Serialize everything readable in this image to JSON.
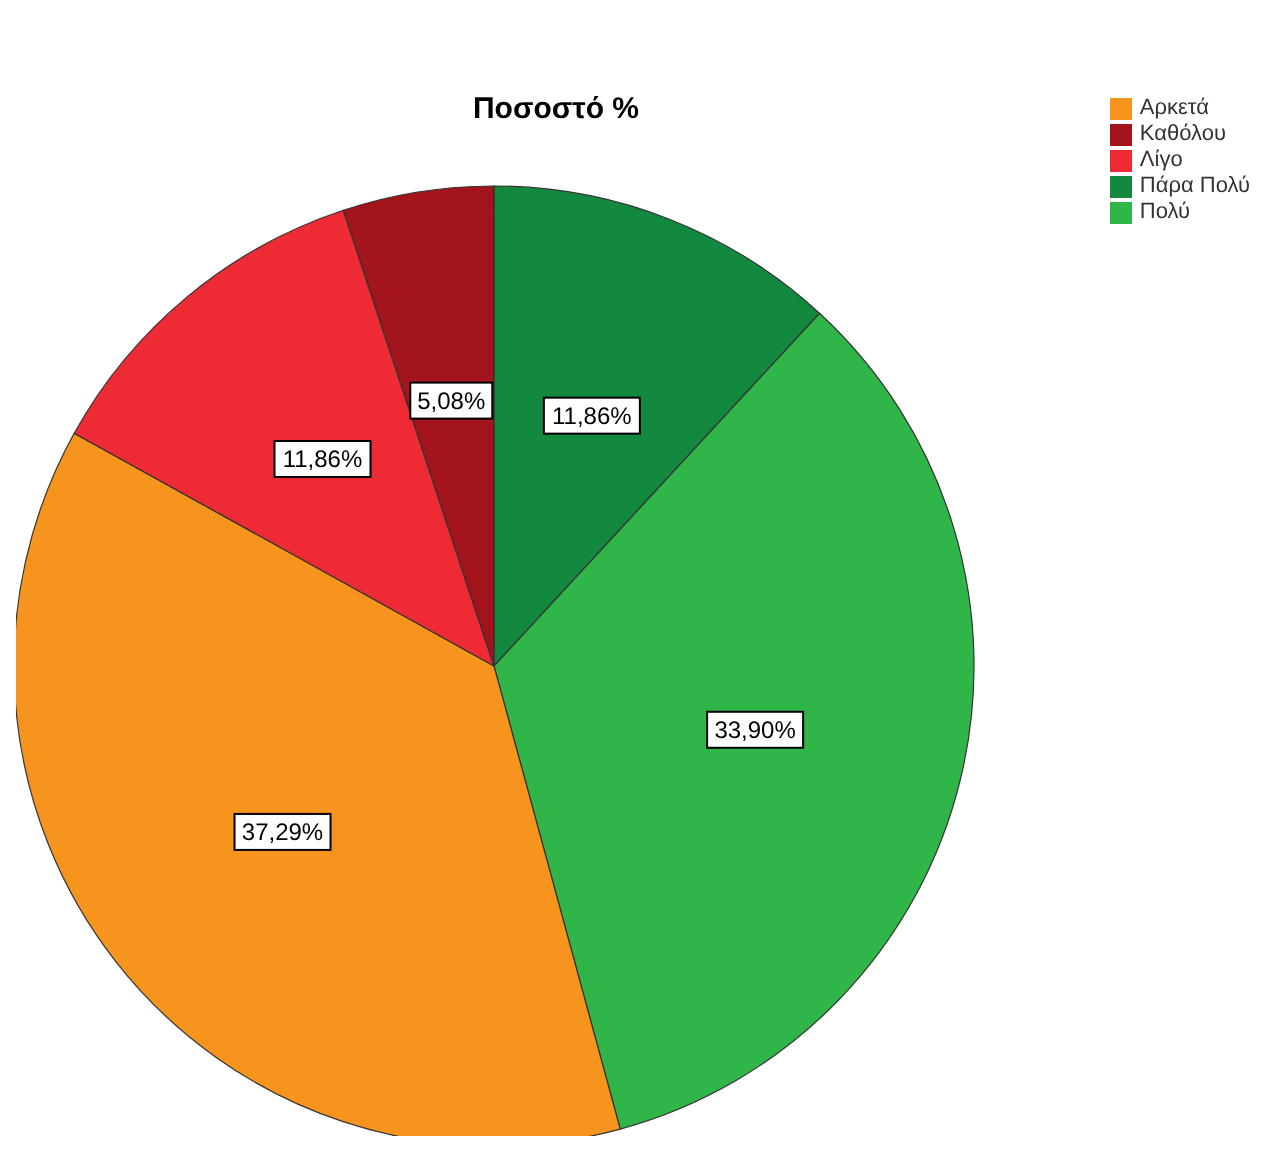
{
  "chart_data": {
    "type": "pie",
    "title": "Ποσοστό %",
    "categories": [
      "Πάρα Πολύ",
      "Πολύ",
      "Αρκετά",
      "Λίγο",
      "Καθόλου"
    ],
    "values": [
      11.86,
      33.9,
      37.29,
      11.86,
      5.08
    ],
    "colors": [
      "#13893f",
      "#2fb548",
      "#f7941d",
      "#ee2b34",
      "#a3141c"
    ],
    "value_labels": [
      "11,86%",
      "33,90%",
      "37,29%",
      "11,86%",
      "5,08%"
    ],
    "legend": "top right"
  }
}
